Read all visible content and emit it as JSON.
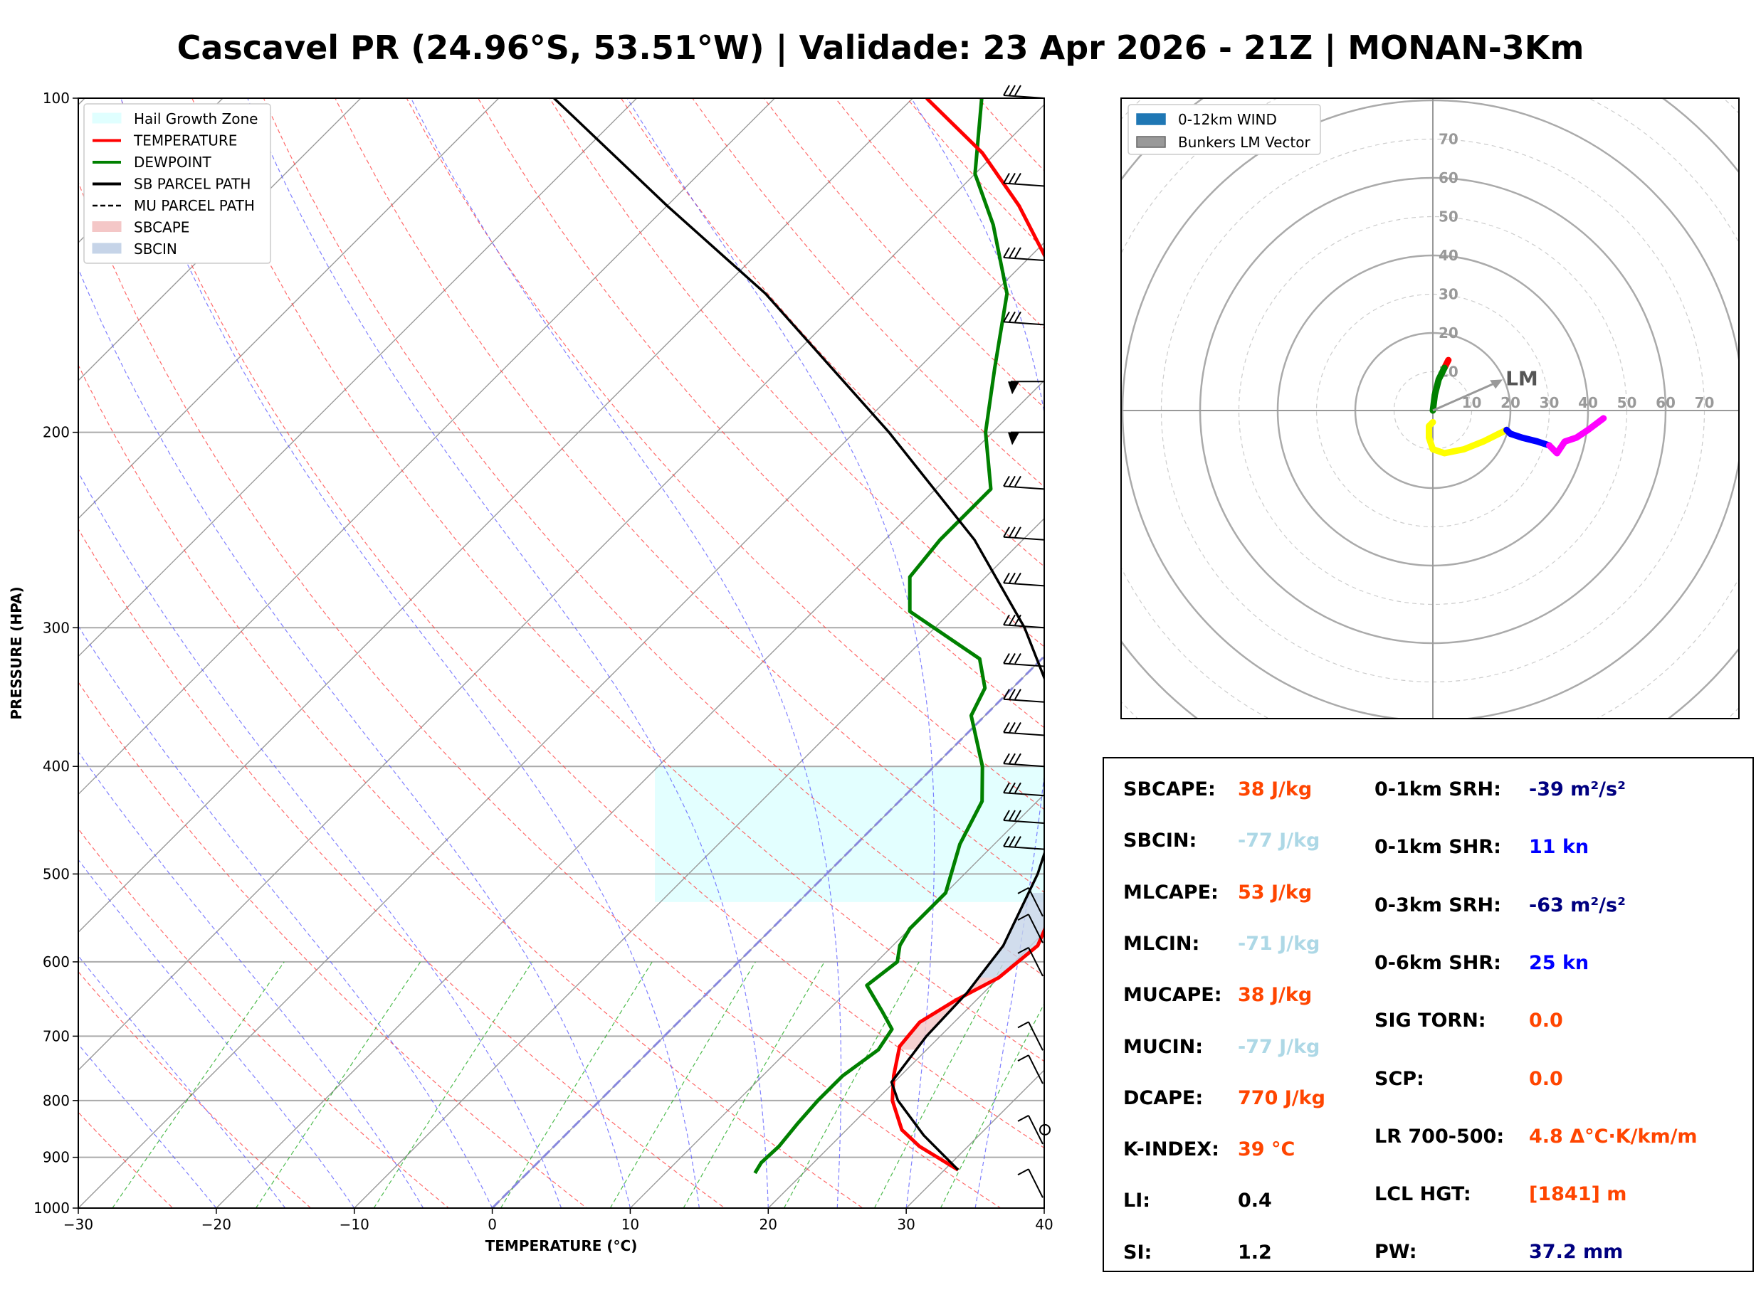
{
  "title": "Cascavel PR (24.96°S, 53.51°W) | Validade: 23 Apr 2026 - 21Z | MONAN-3Km",
  "chart_data": [
    {
      "type": "line",
      "subtype": "skew-T log-P sounding",
      "xlabel": "TEMPERATURE (°C)",
      "ylabel": "PRESSURE (HPA)",
      "xlim": [
        -30,
        40
      ],
      "ylim": [
        1000,
        100
      ],
      "y_scale": "log",
      "x_ticks": [
        "−30",
        "−20",
        "−10",
        "0",
        "10",
        "20",
        "30",
        "40"
      ],
      "y_ticks": [
        "100",
        "200",
        "300",
        "400",
        "500",
        "600",
        "700",
        "800",
        "900",
        "1000"
      ],
      "grid": true,
      "legend_position": "upper-left",
      "legend": [
        {
          "label": "Hail Growth Zone",
          "color": "#e0ffff",
          "kind": "fill"
        },
        {
          "label": "TEMPERATURE",
          "color": "#ff0000",
          "kind": "line"
        },
        {
          "label": "DEWPOINT",
          "color": "#008000",
          "kind": "line"
        },
        {
          "label": "SB PARCEL PATH",
          "color": "#000000",
          "kind": "line"
        },
        {
          "label": "MU PARCEL PATH",
          "color": "#000000",
          "kind": "dashed"
        },
        {
          "label": "SBCAPE",
          "color": "#f4c7c7",
          "kind": "fill"
        },
        {
          "label": "SBCIN",
          "color": "#c6d4e8",
          "kind": "fill"
        }
      ],
      "series": [
        {
          "name": "TEMPERATURE",
          "color": "#ff0000",
          "points": [
            [
              924,
              31.0
            ],
            [
              880,
              26.5
            ],
            [
              850,
              24.0
            ],
            [
              800,
              21.2
            ],
            [
              760,
              19.5
            ],
            [
              715,
              17.8
            ],
            [
              680,
              17.5
            ],
            [
              650,
              18.5
            ],
            [
              620,
              20.0
            ],
            [
              580,
              20.5
            ],
            [
              560,
              19.8
            ],
            [
              520,
              17.5
            ],
            [
              480,
              14.5
            ],
            [
              420,
              11.0
            ],
            [
              380,
              8.5
            ],
            [
              320,
              3.5
            ],
            [
              290,
              0.0
            ],
            [
              260,
              -4.5
            ],
            [
              230,
              -9.5
            ],
            [
              200,
              -14.5
            ],
            [
              180,
              -18.5
            ],
            [
              160,
              -23.0
            ],
            [
              140,
              -28.5
            ],
            [
              125,
              -34.5
            ],
            [
              112,
              -41.0
            ],
            [
              100,
              -49.0
            ]
          ]
        },
        {
          "name": "DEWPOINT",
          "color": "#008000",
          "points": [
            [
              930,
              16.5
            ],
            [
              910,
              16.2
            ],
            [
              880,
              16.3
            ],
            [
              840,
              16.0
            ],
            [
              800,
              15.8
            ],
            [
              760,
              15.8
            ],
            [
              720,
              16.5
            ],
            [
              690,
              16.0
            ],
            [
              665,
              14.0
            ],
            [
              630,
              11.0
            ],
            [
              600,
              11.5
            ],
            [
              580,
              10.5
            ],
            [
              560,
              10.0
            ],
            [
              520,
              10.0
            ],
            [
              470,
              7.5
            ],
            [
              430,
              6.0
            ],
            [
              400,
              3.5
            ],
            [
              360,
              -1.0
            ],
            [
              340,
              -2.0
            ],
            [
              320,
              -4.5
            ],
            [
              290,
              -13.0
            ],
            [
              270,
              -15.5
            ],
            [
              250,
              -16.0
            ],
            [
              225,
              -16.0
            ],
            [
              200,
              -20.5
            ],
            [
              175,
              -24.5
            ],
            [
              150,
              -29.0
            ],
            [
              130,
              -35.0
            ],
            [
              117,
              -40.0
            ],
            [
              100,
              -45.0
            ]
          ]
        },
        {
          "name": "SB PARCEL PATH",
          "color": "#000000",
          "points": [
            [
              924,
              31.0
            ],
            [
              860,
              26.0
            ],
            [
              800,
              21.6
            ],
            [
              770,
              19.8
            ],
            [
              700,
              19.0
            ],
            [
              640,
              18.8
            ],
            [
              580,
              18.0
            ],
            [
              500,
              15.3
            ],
            [
              440,
              12.3
            ],
            [
              400,
              9.5
            ],
            [
              350,
              4.0
            ],
            [
              300,
              -3.5
            ],
            [
              250,
              -13.5
            ],
            [
              200,
              -27.5
            ],
            [
              150,
              -46.5
            ],
            [
              125,
              -60.0
            ],
            [
              100,
              -76.0
            ]
          ]
        }
      ],
      "hail_growth_zone_hpa": [
        400,
        530
      ]
    },
    {
      "type": "scatter",
      "subtype": "hodograph",
      "legend": [
        {
          "label": "0-12km WIND",
          "color": "#1f77b4"
        },
        {
          "label": "Bunkers LM Vector",
          "color": "#999999"
        }
      ],
      "legend_position": "upper-left",
      "ring_labels_y": [
        "10",
        "20",
        "30",
        "40",
        "50",
        "60",
        "70"
      ],
      "ring_labels_x": [
        "10",
        "20",
        "30",
        "40",
        "50",
        "60",
        "70"
      ],
      "lm_label": "LM",
      "lm_vector": [
        18,
        8
      ],
      "segments": [
        {
          "color": "#ff0000",
          "points": [
            [
              3,
              11
            ],
            [
              4,
              13
            ]
          ]
        },
        {
          "color": "#008000",
          "points": [
            [
              0,
              0
            ],
            [
              0.5,
              4
            ],
            [
              1.5,
              8
            ],
            [
              3,
              11
            ]
          ]
        },
        {
          "color": "#ffff00",
          "points": [
            [
              0,
              -3
            ],
            [
              -1,
              -4
            ],
            [
              -1,
              -7
            ],
            [
              0,
              -10
            ],
            [
              3,
              -11
            ],
            [
              8,
              -10
            ],
            [
              13,
              -8
            ],
            [
              17,
              -6
            ],
            [
              19,
              -5
            ]
          ]
        },
        {
          "color": "#0000ff",
          "points": [
            [
              19,
              -5
            ],
            [
              20,
              -6
            ],
            [
              23,
              -7
            ],
            [
              27,
              -8
            ],
            [
              30,
              -9
            ]
          ]
        },
        {
          "color": "#ff00ff",
          "points": [
            [
              30,
              -9
            ],
            [
              32,
              -11
            ],
            [
              34,
              -8
            ],
            [
              37,
              -7
            ],
            [
              40,
              -5
            ],
            [
              44,
              -2
            ]
          ]
        }
      ]
    }
  ],
  "params": {
    "left": [
      {
        "label": "SBCAPE:",
        "value": "38 J/kg",
        "color": "#ff4500"
      },
      {
        "label": "SBCIN:",
        "value": "-77 J/kg",
        "color": "#add8e6"
      },
      {
        "label": "MLCAPE:",
        "value": "53 J/kg",
        "color": "#ff4500"
      },
      {
        "label": "MLCIN:",
        "value": "-71 J/kg",
        "color": "#add8e6"
      },
      {
        "label": "MUCAPE:",
        "value": "38 J/kg",
        "color": "#ff4500"
      },
      {
        "label": "MUCIN:",
        "value": "-77 J/kg",
        "color": "#add8e6"
      },
      {
        "label": "DCAPE:",
        "value": "770 J/kg",
        "color": "#ff4500"
      },
      {
        "label": "K-INDEX:",
        "value": "39 °C",
        "color": "#ff4500"
      },
      {
        "label": "LI:",
        "value": "0.4",
        "color": "#000000"
      },
      {
        "label": "SI:",
        "value": "1.2",
        "color": "#000000"
      }
    ],
    "right": [
      {
        "label": "0-1km SRH:",
        "value": "-39 m²/s²",
        "color": "#000080"
      },
      {
        "label": "0-1km SHR:",
        "value": "11 kn",
        "color": "#0000ff"
      },
      {
        "label": "0-3km SRH:",
        "value": "-63 m²/s²",
        "color": "#000080"
      },
      {
        "label": "0-6km SHR:",
        "value": "25 kn",
        "color": "#0000ff"
      },
      {
        "label": "SIG TORN:",
        "value": "0.0",
        "color": "#ff4500"
      },
      {
        "label": "SCP:",
        "value": "0.0",
        "color": "#ff4500"
      },
      {
        "label": "LR 700-500:",
        "value": "4.8 Δ°C·K/km/m",
        "color": "#ff4500"
      },
      {
        "label": "LCL HGT:",
        "value": "[1841] m",
        "color": "#ff4500"
      },
      {
        "label": "PW:",
        "value": "37.2 mm",
        "color": "#000080"
      }
    ]
  }
}
